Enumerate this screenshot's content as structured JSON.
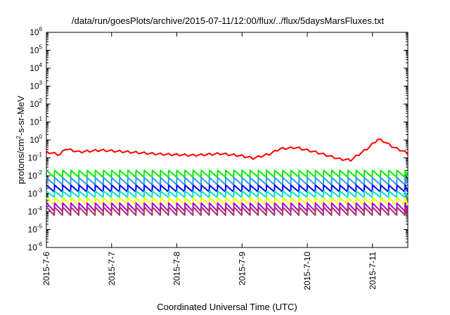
{
  "chart_data": {
    "type": "line",
    "title": "/data/run/goesPlots/archive/2015-07-11/12:00/flux/../flux/5daysMarsFluxes.txt",
    "xlabel": "Coordinated Universal Time (UTC)",
    "ylabel": {
      "pre": "protons/cm",
      "sup": "2",
      "post": "-s-sr-MeV"
    },
    "y_scale": "log",
    "ylim": [
      1e-06,
      1000000.0
    ],
    "xlim": [
      "2015-07-06 00:00",
      "2015-07-11 13:00"
    ],
    "grid": false,
    "legend": "none",
    "x_ticks": [
      "2015-7-6",
      "2015-7-7",
      "2015-7-8",
      "2015-7-9",
      "2015-7-10",
      "2015-7-11"
    ],
    "y_ticks": [
      {
        "base": "10",
        "exp": "6"
      },
      {
        "base": "10",
        "exp": "5"
      },
      {
        "base": "10",
        "exp": "4"
      },
      {
        "base": "10",
        "exp": "3"
      },
      {
        "base": "10",
        "exp": "2"
      },
      {
        "base": "10",
        "exp": "1"
      },
      {
        "base": "10",
        "exp": "0"
      },
      {
        "base": "10",
        "exp": "-1"
      },
      {
        "base": "10",
        "exp": "-2"
      },
      {
        "base": "10",
        "exp": "-3"
      },
      {
        "base": "10",
        "exp": "-4"
      },
      {
        "base": "10",
        "exp": "-5"
      },
      {
        "base": "10",
        "exp": "-6"
      }
    ],
    "series": [
      {
        "color": "#ff0000",
        "points": [
          [
            "2015-07-06 00:00",
            0.2
          ],
          [
            "2015-07-06 05:00",
            0.14
          ],
          [
            "2015-07-06 07:00",
            0.3
          ],
          [
            "2015-07-06 12:00",
            0.2
          ],
          [
            "2015-07-06 20:00",
            0.25
          ],
          [
            "2015-07-07 06:00",
            0.2
          ],
          [
            "2015-07-07 18:00",
            0.15
          ],
          [
            "2015-07-08 06:00",
            0.13
          ],
          [
            "2015-07-08 16:00",
            0.16
          ],
          [
            "2015-07-09 00:00",
            0.12
          ],
          [
            "2015-07-09 04:00",
            0.09
          ],
          [
            "2015-07-09 10:00",
            0.15
          ],
          [
            "2015-07-09 14:00",
            0.3
          ],
          [
            "2015-07-09 20:00",
            0.35
          ],
          [
            "2015-07-10 04:00",
            0.18
          ],
          [
            "2015-07-10 12:00",
            0.08
          ],
          [
            "2015-07-10 16:00",
            0.07
          ],
          [
            "2015-07-10 22:00",
            0.3
          ],
          [
            "2015-07-11 02:00",
            1.0
          ],
          [
            "2015-07-11 04:00",
            0.8
          ],
          [
            "2015-07-11 08:00",
            0.35
          ],
          [
            "2015-07-11 12:00",
            0.2
          ],
          [
            "2015-07-11 13:00",
            0.15
          ]
        ],
        "wiggle": 1.5,
        "period_hours": 3
      },
      {
        "color": "#00ee00",
        "peak": 0.02,
        "trough": 0.008,
        "period_hours": 3
      },
      {
        "color": "#2a9be8",
        "peak": 0.008,
        "trough": 0.003,
        "period_hours": 3
      },
      {
        "color": "#0000ff",
        "peak": 0.003,
        "trough": 0.0012,
        "period_hours": 3
      },
      {
        "color": "#00e5c8",
        "peak": 0.0014,
        "trough": 0.0006,
        "period_hours": 3
      },
      {
        "color": "#ffff00",
        "peak": 0.0006,
        "trough": 0.00022,
        "period_hours": 3
      },
      {
        "color": "#a000ff",
        "peak": 0.0003,
        "trough": 0.0001,
        "period_hours": 3
      },
      {
        "color": "#b03060",
        "peak": 0.00018,
        "trough": 6e-05,
        "period_hours": 3
      }
    ]
  }
}
